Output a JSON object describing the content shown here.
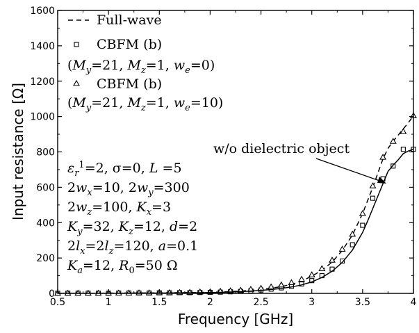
{
  "chart_data": {
    "type": "line",
    "xlabel": "Frequency [GHz]",
    "ylabel": "Input resistance [Ω]",
    "xlim": [
      0.5,
      4
    ],
    "ylim": [
      0,
      1600
    ],
    "x_ticks": [
      "0.5",
      "1",
      "1.5",
      "2",
      "2.5",
      "3",
      "3.5",
      "4"
    ],
    "y_ticks": [
      "0",
      "200",
      "400",
      "600",
      "800",
      "1000",
      "1200",
      "1400",
      "1600"
    ],
    "grid": false,
    "legend_position": "top-left",
    "series": [
      {
        "name": "Full-wave",
        "style": "dashed-line",
        "x": [
          0.5,
          0.7,
          0.9,
          1.1,
          1.3,
          1.5,
          1.7,
          1.9,
          2.1,
          2.3,
          2.5,
          2.6,
          2.7,
          2.8,
          2.9,
          3.0,
          3.1,
          3.2,
          3.3,
          3.4,
          3.5,
          3.6,
          3.65,
          3.7,
          3.75,
          3.8,
          3.85,
          3.9,
          3.95,
          4.0
        ],
        "y": [
          1,
          1,
          1,
          2,
          2,
          3,
          4,
          5,
          8,
          13,
          22,
          29,
          38,
          51,
          70,
          97,
          131,
          177,
          243,
          330,
          452,
          600,
          680,
          760,
          820,
          860,
          895,
          930,
          965,
          1005
        ]
      },
      {
        "name": "CBFM (b)",
        "style": "square-markers",
        "x": [
          0.5,
          0.6,
          0.7,
          0.8,
          0.9,
          1.0,
          1.1,
          1.2,
          1.3,
          1.4,
          1.5,
          1.6,
          1.7,
          1.8,
          1.9,
          2.0,
          2.1,
          2.2,
          2.3,
          2.4,
          2.5,
          2.6,
          2.7,
          2.8,
          2.9,
          3.0,
          3.1,
          3.2,
          3.3,
          3.4,
          3.5,
          3.6,
          3.7,
          3.8,
          3.9,
          4.0
        ],
        "y": [
          1,
          1,
          1,
          1,
          1,
          1,
          2,
          2,
          2,
          2,
          3,
          3,
          4,
          4,
          5,
          6,
          7,
          9,
          11,
          14,
          19,
          24,
          31,
          40,
          53,
          72,
          100,
          137,
          183,
          275,
          385,
          538,
          648,
          720,
          815,
          815
        ]
      },
      {
        "name": "CBFM (b)",
        "style": "triangle-markers",
        "x": [
          0.5,
          0.6,
          0.7,
          0.8,
          0.9,
          1.0,
          1.1,
          1.2,
          1.3,
          1.4,
          1.5,
          1.6,
          1.7,
          1.8,
          1.9,
          2.0,
          2.1,
          2.2,
          2.3,
          2.4,
          2.5,
          2.6,
          2.7,
          2.8,
          2.9,
          3.0,
          3.1,
          3.2,
          3.3,
          3.4,
          3.5,
          3.6,
          3.7,
          3.8,
          3.9,
          4.0
        ],
        "y": [
          1,
          1,
          1,
          1,
          1,
          2,
          2,
          2,
          3,
          3,
          4,
          4,
          5,
          6,
          8,
          9,
          12,
          15,
          18,
          23,
          29,
          37,
          48,
          61,
          80,
          105,
          140,
          188,
          250,
          335,
          452,
          608,
          770,
          860,
          915,
          1005
        ]
      },
      {
        "name": "",
        "style": "solid-line",
        "x": [
          0.5,
          0.7,
          0.9,
          1.1,
          1.3,
          1.5,
          1.7,
          1.9,
          2.1,
          2.3,
          2.5,
          2.6,
          2.7,
          2.8,
          2.9,
          3.0,
          3.1,
          3.2,
          3.3,
          3.4,
          3.5,
          3.55,
          3.6,
          3.65,
          3.7,
          3.75,
          3.8,
          3.85,
          3.9,
          3.95,
          4.0
        ],
        "y": [
          1,
          1,
          1,
          1,
          2,
          2,
          3,
          4,
          6,
          10,
          17,
          22,
          28,
          36,
          48,
          65,
          90,
          125,
          175,
          245,
          345,
          410,
          480,
          550,
          620,
          690,
          725,
          755,
          790,
          805,
          815
        ]
      }
    ],
    "legend": [
      {
        "marker": "dashed-line",
        "text": "Full-wave"
      },
      {
        "marker": "square",
        "text": "CBFM (b)"
      },
      {
        "marker": "none",
        "text": "(My=21, Mz=1, we=0)"
      },
      {
        "marker": "triangle",
        "text": "CBFM (b)"
      },
      {
        "marker": "none",
        "text": "(My=21, Mz=1, we=10)"
      }
    ],
    "annotation": "w/o dielectric object",
    "params": [
      "εr1=2, σ=0, L =5",
      "2wx=10, 2wy=300",
      "2wz=100, Kx=3",
      "Ky=32, Kz=12, d=2",
      "2lx=2lz=120, a=0.1",
      "Ka=12, R0=50 Ω"
    ]
  }
}
